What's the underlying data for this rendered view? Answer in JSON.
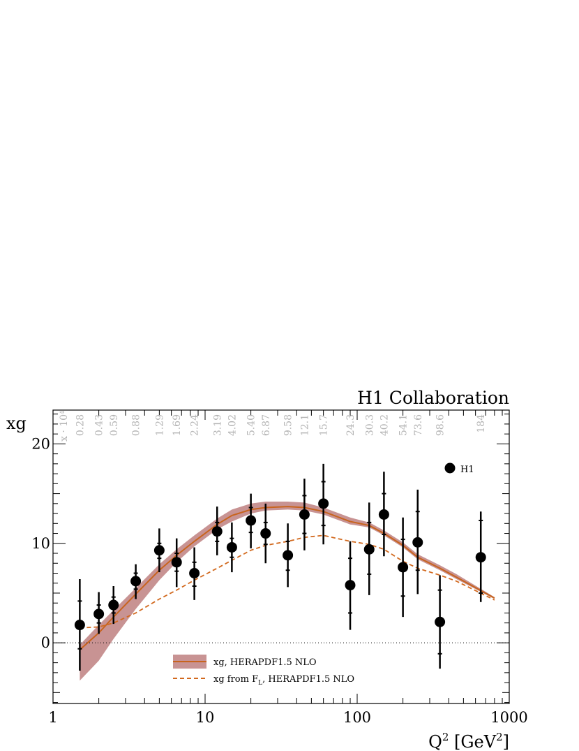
{
  "chart_data": {
    "type": "scatter",
    "title": "H1 Collaboration",
    "xlabel": "Q^2 [GeV^2]",
    "ylabel": "xg",
    "x_scale": "log",
    "xlim": [
      1,
      1000
    ],
    "ylim": [
      -6.1,
      23.4
    ],
    "x_ticks": [
      1,
      10,
      100,
      1000
    ],
    "y_ticks": [
      0,
      10,
      20
    ],
    "top_axis_label": "x · 10^4",
    "top_axis_ticks": [
      {
        "q2": 1.5,
        "x": "0.28"
      },
      {
        "q2": 2.0,
        "x": "0.43"
      },
      {
        "q2": 2.5,
        "x": "0.59"
      },
      {
        "q2": 3.5,
        "x": "0.88"
      },
      {
        "q2": 5.0,
        "x": "1.29"
      },
      {
        "q2": 6.5,
        "x": "1.69"
      },
      {
        "q2": 8.5,
        "x": "2.24"
      },
      {
        "q2": 12,
        "x": "3.19"
      },
      {
        "q2": 15,
        "x": "4.02"
      },
      {
        "q2": 20,
        "x": "5.40"
      },
      {
        "q2": 25,
        "x": "6.87"
      },
      {
        "q2": 35,
        "x": "9.58"
      },
      {
        "q2": 45,
        "x": "12.1"
      },
      {
        "q2": 60,
        "x": "15.7"
      },
      {
        "q2": 90,
        "x": "24.3"
      },
      {
        "q2": 120,
        "x": "30.3"
      },
      {
        "q2": 150,
        "x": "40.2"
      },
      {
        "q2": 200,
        "x": "54.1"
      },
      {
        "q2": 250,
        "x": "73.6"
      },
      {
        "q2": 350,
        "x": "98.6"
      },
      {
        "q2": 650,
        "x": "184"
      }
    ],
    "series": [
      {
        "name": "H1",
        "kind": "points",
        "color": "#000000",
        "points": [
          {
            "x": 1.5,
            "y": 1.8,
            "inner": [
              -0.6,
              4.2
            ],
            "outer": [
              -2.8,
              6.4
            ]
          },
          {
            "x": 2.0,
            "y": 2.9,
            "inner": [
              2.0,
              3.8
            ],
            "outer": [
              0.9,
              5.1
            ]
          },
          {
            "x": 2.5,
            "y": 3.8,
            "inner": [
              3.0,
              4.6
            ],
            "outer": [
              1.9,
              5.7
            ]
          },
          {
            "x": 3.5,
            "y": 6.2,
            "inner": [
              5.4,
              7.0
            ],
            "outer": [
              4.4,
              7.9
            ]
          },
          {
            "x": 5.0,
            "y": 9.3,
            "inner": [
              8.5,
              10.0
            ],
            "outer": [
              7.1,
              11.5
            ]
          },
          {
            "x": 6.5,
            "y": 8.1,
            "inner": [
              7.2,
              9.0
            ],
            "outer": [
              5.6,
              10.5
            ]
          },
          {
            "x": 8.5,
            "y": 7.0,
            "inner": [
              5.7,
              8.1
            ],
            "outer": [
              4.3,
              9.6
            ]
          },
          {
            "x": 12,
            "y": 11.2,
            "inner": [
              10.2,
              12.1
            ],
            "outer": [
              8.8,
              13.7
            ]
          },
          {
            "x": 15,
            "y": 9.6,
            "inner": [
              8.6,
              10.5
            ],
            "outer": [
              7.1,
              12.1
            ]
          },
          {
            "x": 20,
            "y": 12.3,
            "inner": [
              11.1,
              13.6
            ],
            "outer": [
              9.5,
              15.0
            ]
          },
          {
            "x": 25,
            "y": 11.0,
            "inner": [
              9.9,
              12.1
            ],
            "outer": [
              8.0,
              14.0
            ]
          },
          {
            "x": 35,
            "y": 8.8,
            "inner": [
              7.3,
              10.2
            ],
            "outer": [
              5.6,
              12.0
            ]
          },
          {
            "x": 45,
            "y": 12.9,
            "inner": [
              11.0,
              14.8
            ],
            "outer": [
              9.3,
              16.5
            ]
          },
          {
            "x": 60,
            "y": 14.0,
            "inner": [
              11.8,
              16.2
            ],
            "outer": [
              9.9,
              18.0
            ]
          },
          {
            "x": 90,
            "y": 5.8,
            "inner": [
              3.0,
              8.5
            ],
            "outer": [
              1.3,
              10.2
            ]
          },
          {
            "x": 120,
            "y": 9.4,
            "inner": [
              6.9,
              12.1
            ],
            "outer": [
              4.8,
              14.1
            ]
          },
          {
            "x": 150,
            "y": 12.9,
            "inner": [
              10.9,
              15.0
            ],
            "outer": [
              8.7,
              17.2
            ]
          },
          {
            "x": 200,
            "y": 7.6,
            "inner": [
              4.7,
              10.4
            ],
            "outer": [
              2.6,
              12.6
            ]
          },
          {
            "x": 250,
            "y": 10.1,
            "inner": [
              7.3,
              13.2
            ],
            "outer": [
              4.9,
              15.4
            ]
          },
          {
            "x": 350,
            "y": 2.1,
            "inner": [
              -1.1,
              5.3
            ],
            "outer": [
              -2.6,
              6.8
            ]
          },
          {
            "x": 650,
            "y": 8.6,
            "inner": [
              5.0,
              12.3
            ],
            "outer": [
              4.1,
              13.2
            ]
          }
        ]
      },
      {
        "name": "xg, HERAPDF1.5 NLO",
        "kind": "line_band",
        "color": "#c8641e",
        "band_color": "#be8080",
        "x": [
          1.5,
          2.0,
          2.5,
          3.5,
          5.0,
          6.5,
          8.5,
          12,
          15,
          20,
          25,
          35,
          45,
          60,
          90,
          120,
          150,
          200,
          250,
          350,
          450,
          800
        ],
        "y": [
          -0.7,
          1.0,
          2.6,
          4.9,
          7.3,
          8.8,
          10.2,
          11.9,
          12.8,
          13.4,
          13.6,
          13.7,
          13.6,
          13.2,
          12.2,
          11.8,
          11.0,
          9.8,
          8.6,
          7.5,
          6.6,
          4.5
        ],
        "band_low": [
          -3.8,
          -1.8,
          0.4,
          3.4,
          6.3,
          8.1,
          9.7,
          11.4,
          12.2,
          13.0,
          13.3,
          13.4,
          13.3,
          12.9,
          11.9,
          11.6,
          10.8,
          9.6,
          8.4,
          7.3,
          6.4,
          4.4
        ],
        "band_high": [
          -0.2,
          1.8,
          3.3,
          5.5,
          7.9,
          9.4,
          10.8,
          12.5,
          13.4,
          14.0,
          14.2,
          14.2,
          14.1,
          13.6,
          12.6,
          12.1,
          11.3,
          10.1,
          8.9,
          7.8,
          6.9,
          4.6
        ]
      },
      {
        "name": "xg from F_L, HERAPDF1.5 NLO",
        "kind": "dashed_line",
        "color": "#d2691e",
        "x": [
          1.5,
          2.0,
          2.5,
          3.5,
          5.0,
          6.5,
          8.5,
          12,
          15,
          20,
          25,
          35,
          45,
          60,
          90,
          120,
          150,
          200,
          250,
          350,
          450,
          800
        ],
        "y": [
          1.5,
          1.6,
          2.0,
          3.0,
          4.4,
          5.3,
          6.3,
          7.5,
          8.3,
          9.3,
          9.8,
          10.2,
          10.6,
          10.8,
          10.2,
          9.9,
          9.4,
          8.2,
          7.5,
          6.8,
          6.2,
          4.3
        ]
      }
    ],
    "reference_line": {
      "y": 0,
      "style": "dotted"
    },
    "legend": {
      "placement": "bottom-center",
      "entries": [
        "xg, HERAPDF1.5 NLO",
        "xg from F_L, HERAPDF1.5 NLO"
      ]
    },
    "point_legend": {
      "label": "H1",
      "placement": "top-right"
    }
  }
}
